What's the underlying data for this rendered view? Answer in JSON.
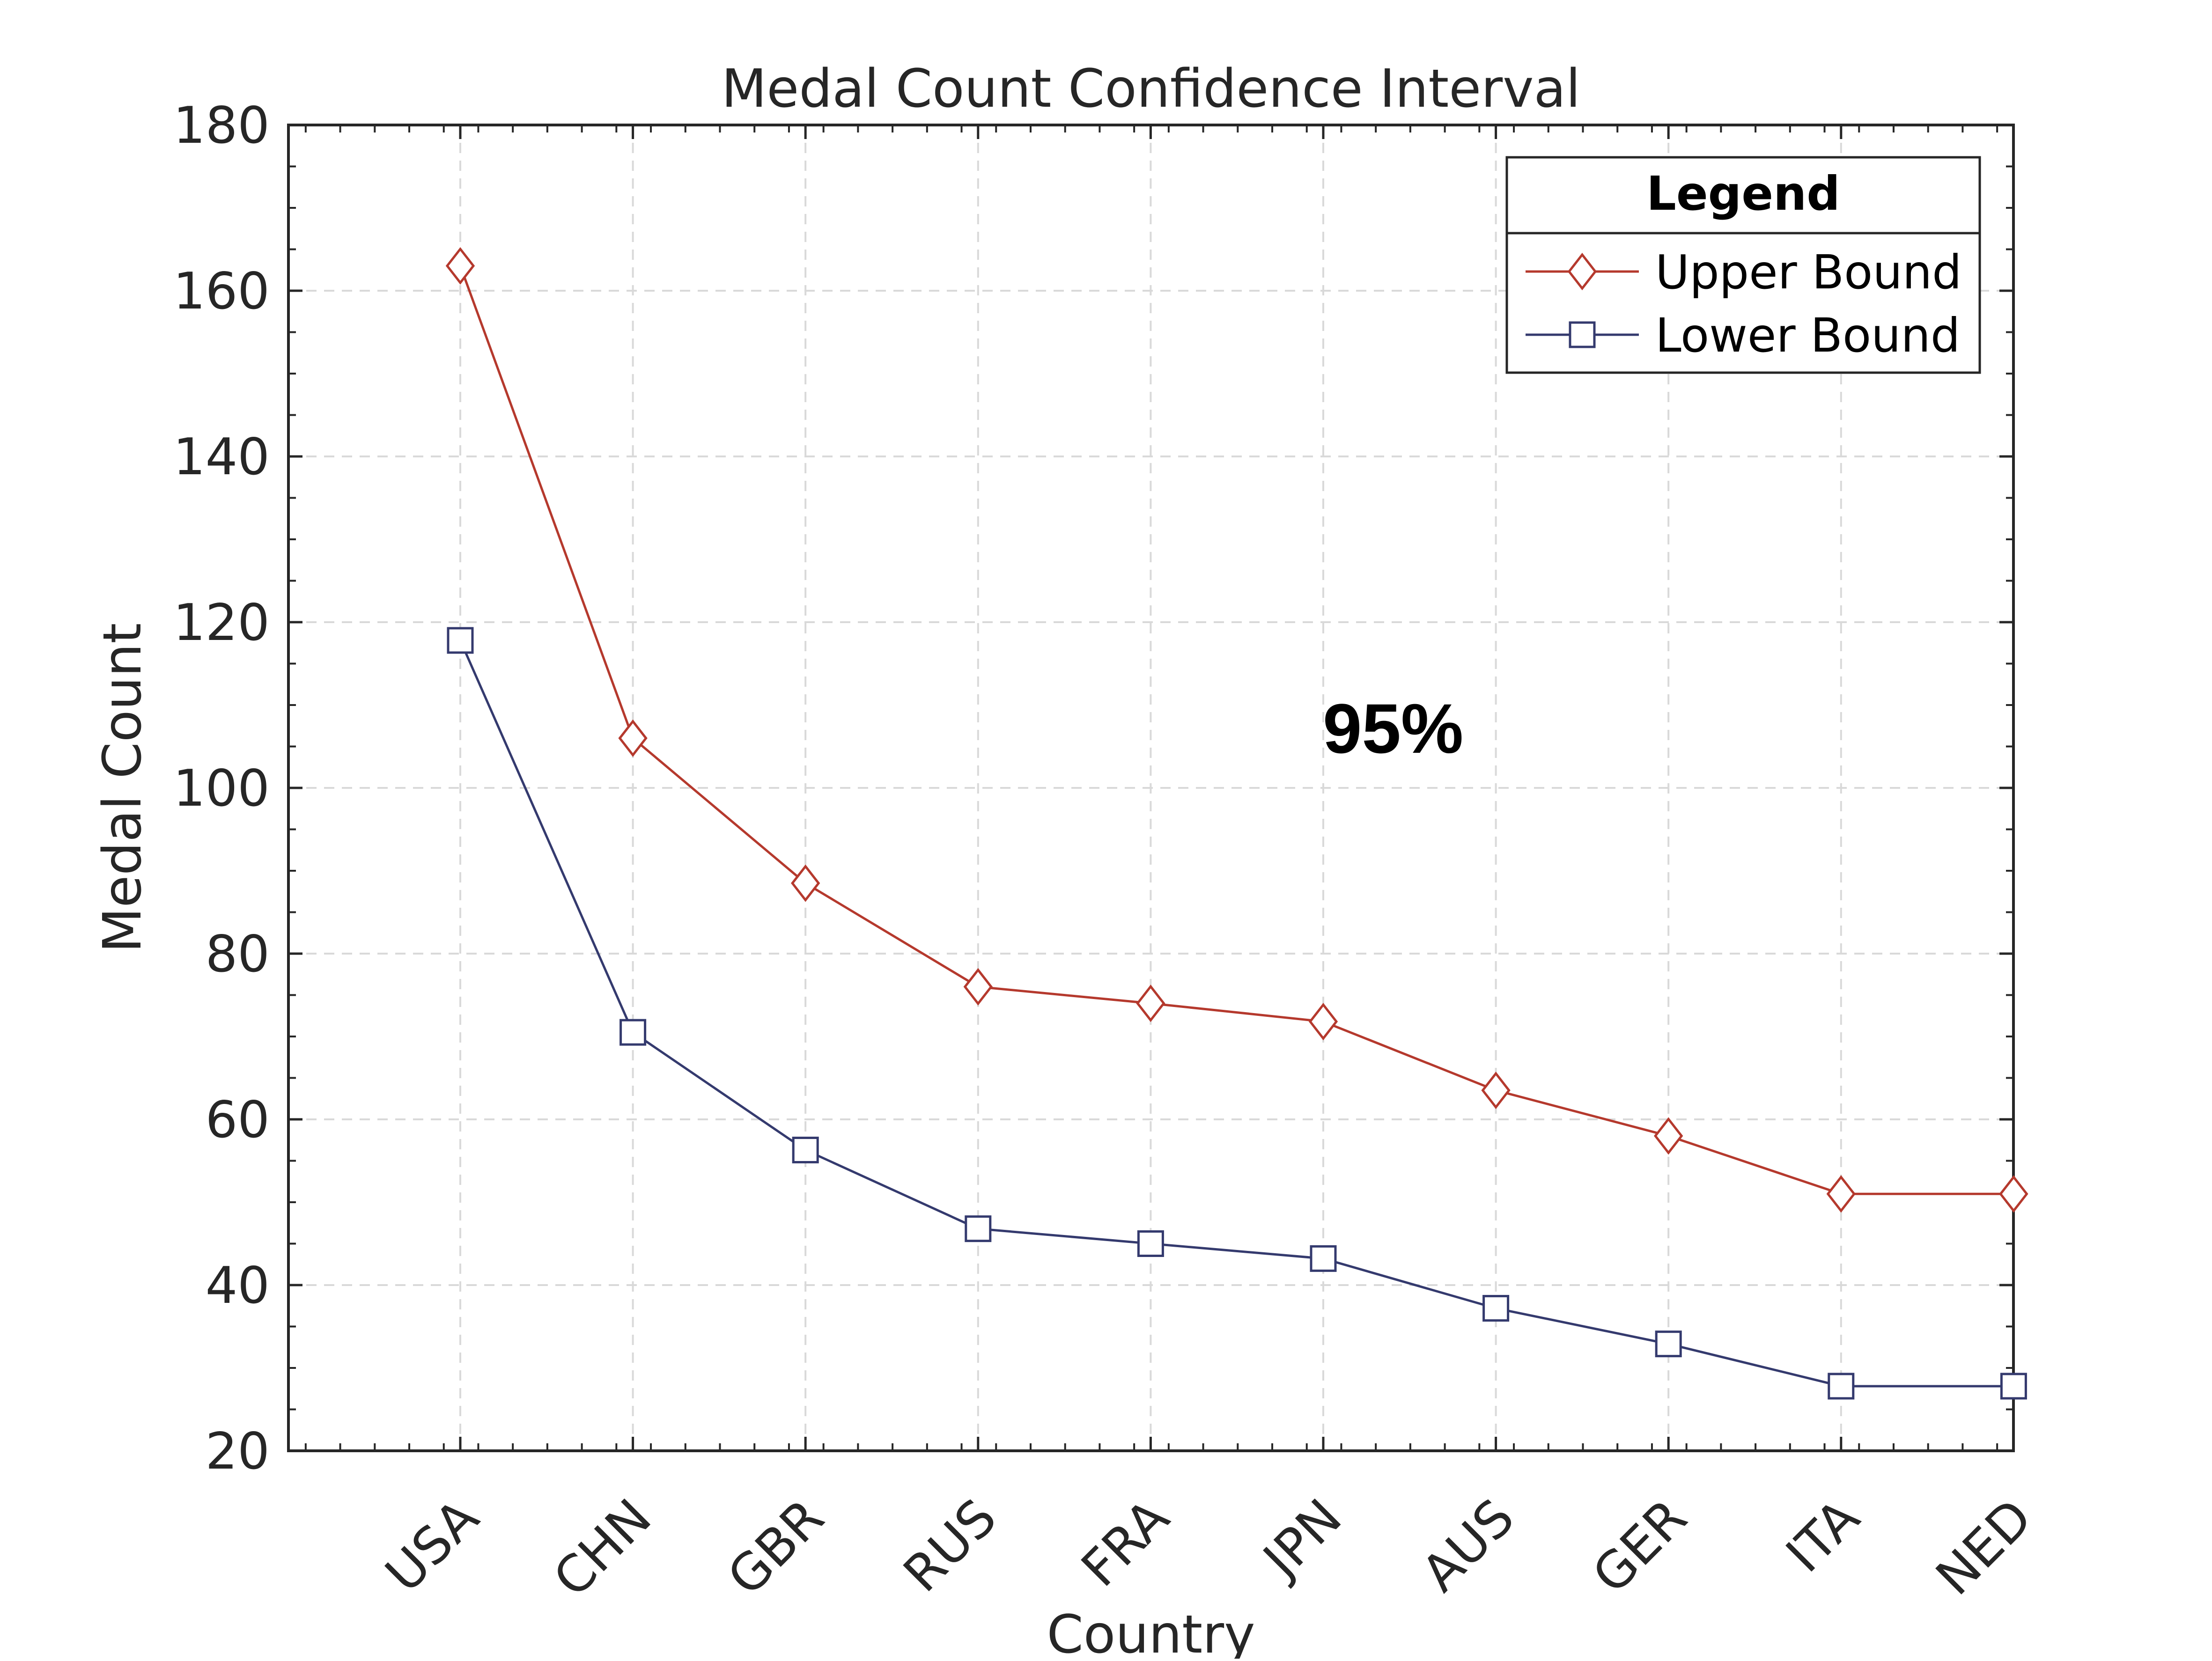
{
  "chart_data": {
    "type": "line",
    "title": "Medal Count Confidence Interval",
    "xlabel": "Country",
    "ylabel": "Medal Count",
    "categories": [
      "USA",
      "CHN",
      "GBR",
      "RUS",
      "FRA",
      "JPN",
      "AUS",
      "GER",
      "ITA",
      "NED"
    ],
    "ylim": [
      20,
      180
    ],
    "yticks": [
      "20",
      "40",
      "60",
      "80",
      "100",
      "120",
      "140",
      "160",
      "180"
    ],
    "grid": true,
    "legend": {
      "title": "Legend",
      "position": "top-right"
    },
    "annotation": "95%",
    "series": [
      {
        "name": "Upper Bound",
        "color": "#b5392d",
        "marker": "diamond",
        "values": [
          163,
          106,
          88.5,
          76,
          74,
          71.8,
          63.5,
          58,
          51,
          51
        ]
      },
      {
        "name": "Lower Bound",
        "color": "#343a6e",
        "marker": "square",
        "values": [
          117.8,
          70.5,
          56.3,
          46.8,
          45,
          43.2,
          37.2,
          32.9,
          27.8,
          27.8
        ]
      }
    ]
  }
}
